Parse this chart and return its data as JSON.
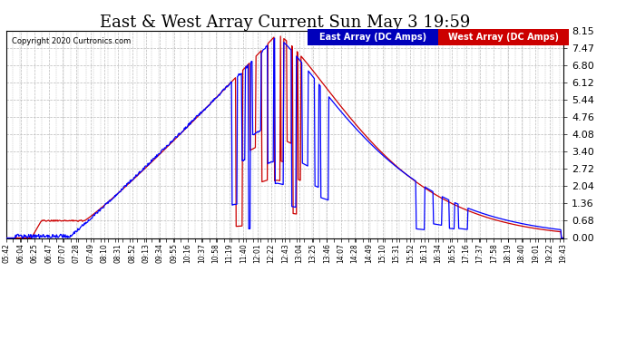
{
  "title": "East & West Array Current Sun May 3 19:59",
  "copyright": "Copyright 2020 Curtronics.com",
  "y_ticks": [
    0.0,
    0.68,
    1.36,
    2.04,
    2.72,
    3.4,
    4.08,
    4.76,
    5.44,
    6.12,
    6.8,
    7.47,
    8.15
  ],
  "ylim": [
    0.0,
    8.15
  ],
  "east_label": "East Array (DC Amps)",
  "west_label": "West Array (DC Amps)",
  "east_color": "#0000ff",
  "west_color": "#cc0000",
  "east_legend_bg": "#0000bb",
  "west_legend_bg": "#cc0000",
  "bg_color": "#ffffff",
  "grid_color": "#bbbbbb",
  "title_fontsize": 13,
  "x_tick_labels": [
    "05:42",
    "06:04",
    "06:25",
    "06:47",
    "07:07",
    "07:28",
    "07:49",
    "08:10",
    "08:31",
    "08:52",
    "09:13",
    "09:34",
    "09:55",
    "10:16",
    "10:37",
    "10:58",
    "11:19",
    "11:40",
    "12:01",
    "12:22",
    "12:43",
    "13:04",
    "13:25",
    "13:46",
    "14:07",
    "14:28",
    "14:49",
    "15:10",
    "15:31",
    "15:52",
    "16:13",
    "16:34",
    "16:55",
    "17:16",
    "17:37",
    "17:58",
    "18:19",
    "18:40",
    "19:01",
    "19:22",
    "19:43"
  ]
}
